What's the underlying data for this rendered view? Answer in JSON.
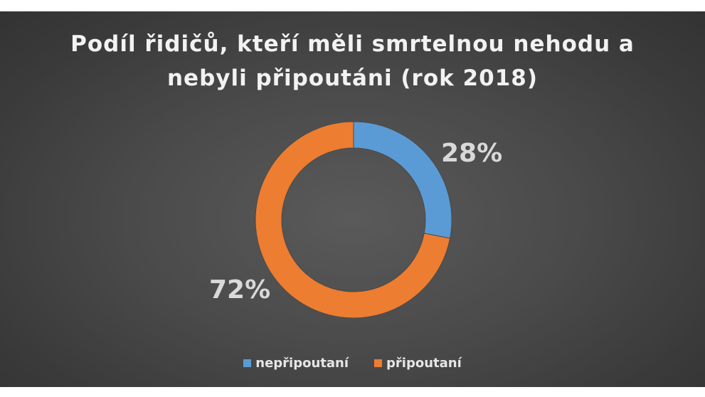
{
  "chart_data": {
    "type": "pie",
    "title": "Podíl řidičů, kteří měli smrtelnou nehodu a nebyli připoutáni (rok 2018)",
    "donut": true,
    "categories": [
      "nepřipoutaní",
      "připoutaní"
    ],
    "values": [
      28,
      72
    ],
    "data_labels": [
      "28%",
      "72%"
    ],
    "colors": [
      "#5b9bd5",
      "#ed7d31"
    ],
    "legend_position": "bottom"
  }
}
